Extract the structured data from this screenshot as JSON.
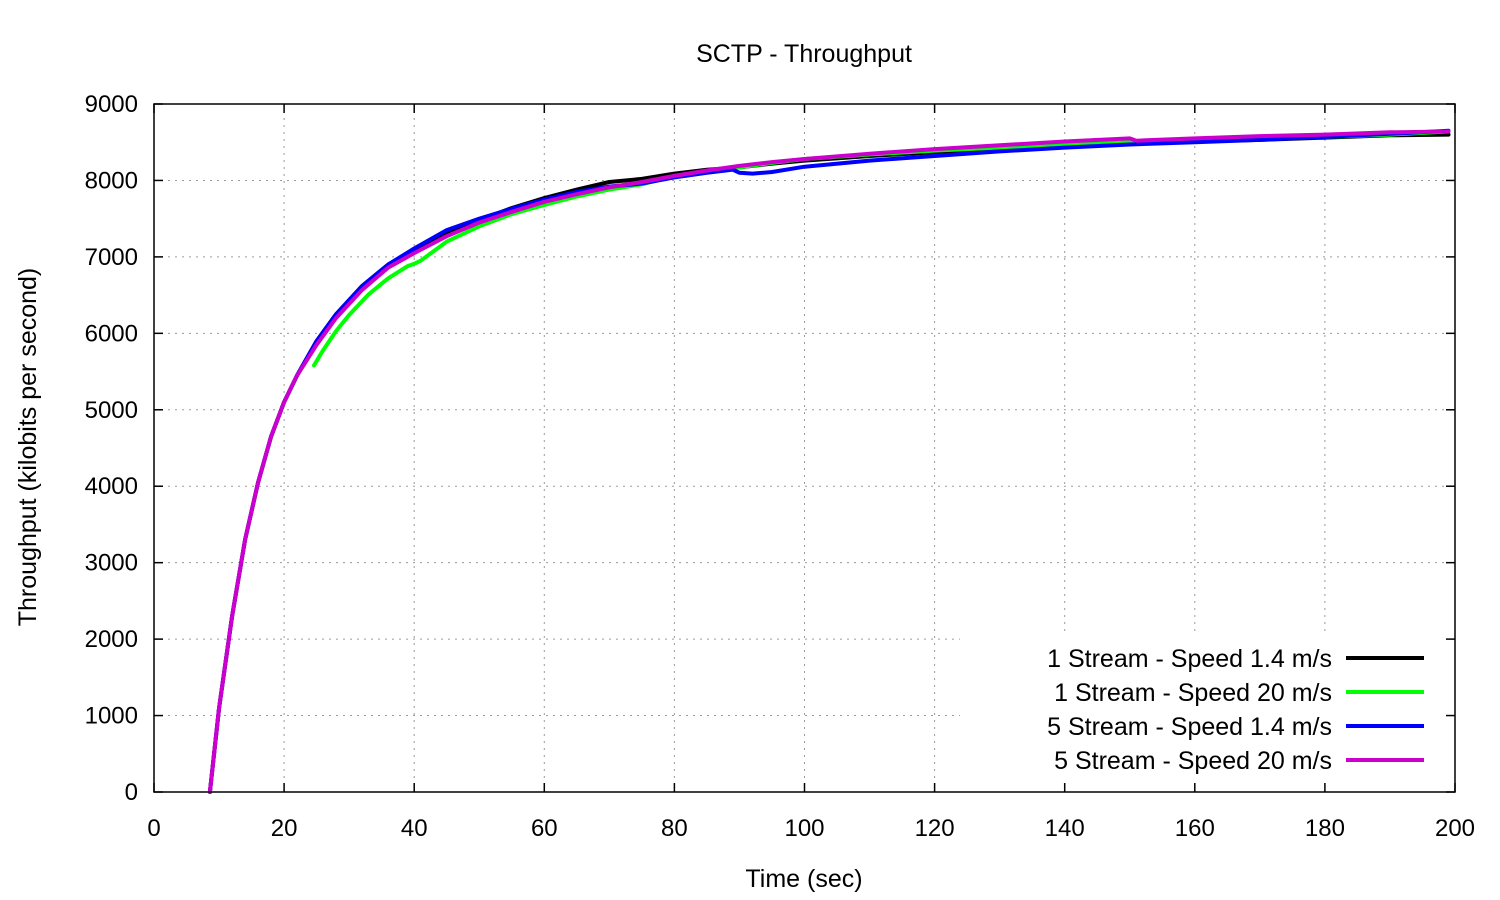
{
  "chart_data": {
    "type": "line",
    "title": "SCTP - Throughput",
    "xlabel": "Time (sec)",
    "ylabel": "Throughput (kilobits per second)",
    "xlim": [
      0,
      200
    ],
    "ylim": [
      0,
      9000
    ],
    "xticks": [
      0,
      20,
      40,
      60,
      80,
      100,
      120,
      140,
      160,
      180,
      200
    ],
    "yticks": [
      0,
      1000,
      2000,
      3000,
      4000,
      5000,
      6000,
      7000,
      8000,
      9000
    ],
    "grid": true,
    "legend_position": "bottom-right",
    "series": [
      {
        "name": "1 Stream - Speed 1.4 m/s",
        "color": "#000000",
        "x": [
          8.6,
          10,
          12,
          14,
          16,
          18,
          20,
          22,
          25,
          28,
          32,
          36,
          40,
          45,
          50,
          55,
          60,
          65,
          70,
          75,
          80,
          85,
          90,
          95,
          100,
          110,
          120,
          130,
          140,
          150,
          160,
          170,
          180,
          190,
          199
        ],
        "y": [
          0,
          1100,
          2300,
          3300,
          4050,
          4650,
          5100,
          5450,
          5900,
          6250,
          6620,
          6900,
          7080,
          7300,
          7480,
          7640,
          7770,
          7880,
          7980,
          8020,
          8090,
          8140,
          8170,
          8220,
          8260,
          8320,
          8370,
          8420,
          8460,
          8490,
          8510,
          8530,
          8560,
          8590,
          8600
        ]
      },
      {
        "name": "1 Stream - Speed 20 m/s",
        "color": "#00ff00",
        "x": [
          24.6,
          26,
          28,
          30,
          33,
          36,
          39,
          40,
          41,
          45,
          50,
          55,
          60,
          65,
          70,
          75,
          80,
          85,
          90,
          95,
          100,
          110,
          120,
          130,
          140,
          150,
          160,
          170,
          180,
          190,
          199
        ],
        "y": [
          5580,
          5780,
          6030,
          6240,
          6510,
          6720,
          6880,
          6910,
          6950,
          7200,
          7400,
          7560,
          7680,
          7790,
          7880,
          7950,
          8060,
          8120,
          8170,
          8230,
          8280,
          8340,
          8390,
          8430,
          8470,
          8500,
          8520,
          8540,
          8570,
          8600,
          8640
        ]
      },
      {
        "name": "5 Stream - Speed 1.4 m/s",
        "color": "#0000ff",
        "x": [
          8.6,
          10,
          12,
          14,
          16,
          18,
          20,
          22,
          25,
          28,
          32,
          36,
          40,
          45,
          50,
          55,
          60,
          65,
          70,
          75,
          80,
          85,
          89,
          90,
          92,
          95,
          100,
          110,
          120,
          130,
          140,
          150,
          160,
          170,
          180,
          190,
          199
        ],
        "y": [
          0,
          1100,
          2300,
          3300,
          4050,
          4650,
          5100,
          5450,
          5900,
          6250,
          6620,
          6900,
          7110,
          7350,
          7500,
          7630,
          7750,
          7850,
          7920,
          7960,
          8040,
          8100,
          8140,
          8100,
          8090,
          8110,
          8180,
          8260,
          8320,
          8380,
          8430,
          8470,
          8500,
          8530,
          8570,
          8610,
          8650
        ]
      },
      {
        "name": "5 Stream - Speed 20 m/s",
        "color": "#cc00cc",
        "x": [
          8.6,
          10,
          12,
          14,
          16,
          18,
          20,
          22,
          25,
          28,
          32,
          36,
          40,
          45,
          50,
          55,
          60,
          65,
          70,
          75,
          80,
          85,
          90,
          95,
          100,
          110,
          120,
          130,
          140,
          150,
          151,
          160,
          170,
          180,
          190,
          199
        ],
        "y": [
          0,
          1100,
          2300,
          3300,
          4050,
          4650,
          5100,
          5450,
          5850,
          6200,
          6570,
          6860,
          7050,
          7270,
          7450,
          7590,
          7720,
          7820,
          7910,
          7980,
          8060,
          8130,
          8190,
          8240,
          8280,
          8350,
          8410,
          8460,
          8510,
          8550,
          8520,
          8550,
          8580,
          8600,
          8630,
          8640
        ]
      }
    ]
  }
}
